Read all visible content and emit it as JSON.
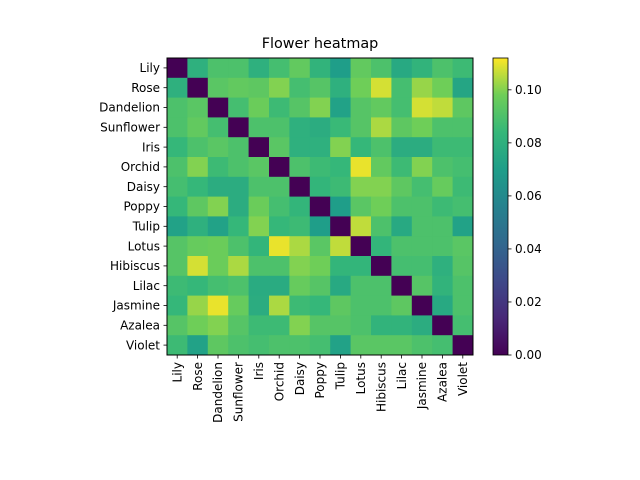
{
  "chart_data": {
    "type": "heatmap",
    "title": "Flower heatmap",
    "xlabel": "",
    "ylabel": "",
    "x_categories": [
      "Lily",
      "Rose",
      "Dandelion",
      "Sunflower",
      "Iris",
      "Orchid",
      "Daisy",
      "Poppy",
      "Tulip",
      "Lotus",
      "Hibiscus",
      "Lilac",
      "Jasmine",
      "Azalea",
      "Violet"
    ],
    "y_categories": [
      "Lily",
      "Rose",
      "Dandelion",
      "Sunflower",
      "Iris",
      "Orchid",
      "Daisy",
      "Poppy",
      "Tulip",
      "Lotus",
      "Hibiscus",
      "Lilac",
      "Jasmine",
      "Azalea",
      "Violet"
    ],
    "colormap": "viridis",
    "vmin": 0.0,
    "vmax": 0.112,
    "colorbar_ticks": [
      "0.00",
      "0.02",
      "0.04",
      "0.06",
      "0.08",
      "0.10"
    ],
    "colorbar_tick_values": [
      0.0,
      0.02,
      0.04,
      0.06,
      0.08,
      0.1
    ],
    "values": [
      [
        0.0,
        0.08,
        0.09,
        0.09,
        0.08,
        0.088,
        0.095,
        0.082,
        0.07,
        0.095,
        0.09,
        0.076,
        0.082,
        0.09,
        0.086
      ],
      [
        0.08,
        0.0,
        0.093,
        0.095,
        0.094,
        0.1,
        0.088,
        0.092,
        0.08,
        0.098,
        0.108,
        0.088,
        0.102,
        0.098,
        0.074
      ],
      [
        0.09,
        0.093,
        0.0,
        0.088,
        0.097,
        0.086,
        0.092,
        0.1,
        0.072,
        0.092,
        0.095,
        0.088,
        0.108,
        0.106,
        0.094
      ],
      [
        0.09,
        0.095,
        0.088,
        0.0,
        0.09,
        0.09,
        0.08,
        0.078,
        0.085,
        0.092,
        0.104,
        0.094,
        0.098,
        0.09,
        0.09
      ],
      [
        0.084,
        0.09,
        0.093,
        0.09,
        0.0,
        0.093,
        0.08,
        0.08,
        0.1,
        0.084,
        0.09,
        0.078,
        0.078,
        0.086,
        0.086
      ],
      [
        0.09,
        0.1,
        0.086,
        0.09,
        0.093,
        0.0,
        0.09,
        0.086,
        0.084,
        0.11,
        0.095,
        0.086,
        0.1,
        0.09,
        0.088
      ],
      [
        0.088,
        0.084,
        0.078,
        0.078,
        0.09,
        0.09,
        0.0,
        0.083,
        0.086,
        0.1,
        0.1,
        0.094,
        0.088,
        0.096,
        0.086
      ],
      [
        0.084,
        0.094,
        0.1,
        0.078,
        0.097,
        0.088,
        0.083,
        0.0,
        0.07,
        0.093,
        0.098,
        0.09,
        0.09,
        0.086,
        0.088
      ],
      [
        0.072,
        0.08,
        0.072,
        0.084,
        0.1,
        0.084,
        0.086,
        0.07,
        0.0,
        0.106,
        0.09,
        0.076,
        0.09,
        0.09,
        0.072
      ],
      [
        0.092,
        0.096,
        0.097,
        0.09,
        0.083,
        0.11,
        0.104,
        0.093,
        0.106,
        0.0,
        0.083,
        0.09,
        0.09,
        0.09,
        0.093
      ],
      [
        0.092,
        0.108,
        0.097,
        0.104,
        0.09,
        0.09,
        0.1,
        0.098,
        0.083,
        0.083,
        0.0,
        0.088,
        0.088,
        0.08,
        0.092
      ],
      [
        0.086,
        0.084,
        0.088,
        0.09,
        0.077,
        0.077,
        0.096,
        0.092,
        0.076,
        0.09,
        0.09,
        0.0,
        0.092,
        0.082,
        0.09
      ],
      [
        0.084,
        0.102,
        0.11,
        0.096,
        0.078,
        0.104,
        0.086,
        0.084,
        0.094,
        0.09,
        0.09,
        0.094,
        0.0,
        0.076,
        0.09
      ],
      [
        0.092,
        0.098,
        0.1,
        0.092,
        0.086,
        0.086,
        0.1,
        0.092,
        0.092,
        0.09,
        0.082,
        0.082,
        0.078,
        0.0,
        0.088
      ],
      [
        0.086,
        0.072,
        0.094,
        0.09,
        0.088,
        0.09,
        0.09,
        0.088,
        0.072,
        0.093,
        0.093,
        0.093,
        0.09,
        0.088,
        0.0
      ]
    ]
  }
}
